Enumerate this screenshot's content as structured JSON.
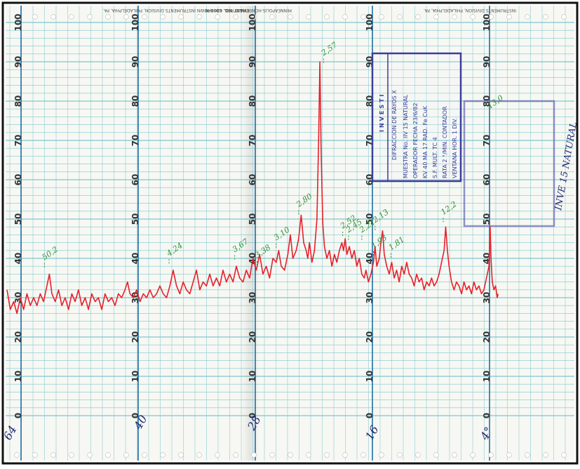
{
  "header": {
    "chart_no": "CHART NO. 6300-N",
    "maker_left": "INSTRUMENTS DIVISION, PHILADELPHIA, PA.",
    "maker_mid": "MINNEAPOLIS-HONEYWELL REG. CO. BROWN INSTRUMENTS DIVISION, PHILADELPHIA, PA."
  },
  "stamp": {
    "title": "INVESTI",
    "lines": [
      "DIFRACCION DE RAYOS X",
      "MUESTRA No. IIV 15 NATURAL",
      "OPERADOR FECHA 23/6/82",
      "KV 40  MA 17  RAD. Fe  CuK",
      "S.F.  MULT.  TC  4",
      "RATA 2  °/MIN.  CONTADOR",
      "VENTANA  HOR. 1 DIV."
    ],
    "side_note": "INVE 15 NATURAL",
    "color": "#3b3f9a"
  },
  "chart_data": {
    "type": "line",
    "title": "",
    "xlabel": "",
    "ylabel": "",
    "xlim": [
      65,
      6
    ],
    "ylim": [
      0,
      100
    ],
    "y_ticks": [
      0,
      10,
      20,
      30,
      40,
      50,
      60,
      70,
      80,
      90,
      100
    ],
    "x_handwritten_labels": [
      "64",
      "40",
      "28",
      "16",
      "4°"
    ],
    "grid": true,
    "line_color": "#e8202a",
    "series": [
      {
        "values": [
          [
            65.0,
            32
          ],
          [
            64.6,
            27
          ],
          [
            64.2,
            29
          ],
          [
            63.8,
            26
          ],
          [
            63.4,
            30
          ],
          [
            63.0,
            27
          ],
          [
            62.6,
            31
          ],
          [
            62.2,
            28
          ],
          [
            61.8,
            30
          ],
          [
            61.4,
            28
          ],
          [
            61.0,
            31
          ],
          [
            60.6,
            29
          ],
          [
            60.2,
            33
          ],
          [
            59.9,
            36
          ],
          [
            59.6,
            31
          ],
          [
            59.2,
            29
          ],
          [
            58.8,
            32
          ],
          [
            58.4,
            28
          ],
          [
            58.0,
            30
          ],
          [
            57.6,
            27
          ],
          [
            57.2,
            31
          ],
          [
            56.8,
            29
          ],
          [
            56.4,
            32
          ],
          [
            56.0,
            28
          ],
          [
            55.6,
            30
          ],
          [
            55.2,
            27
          ],
          [
            54.8,
            31
          ],
          [
            54.4,
            29
          ],
          [
            54.0,
            30
          ],
          [
            53.6,
            27
          ],
          [
            53.2,
            31
          ],
          [
            52.8,
            29
          ],
          [
            52.4,
            30
          ],
          [
            52.0,
            28
          ],
          [
            51.6,
            31
          ],
          [
            51.2,
            30
          ],
          [
            50.8,
            32
          ],
          [
            50.5,
            34
          ],
          [
            50.2,
            31
          ],
          [
            49.8,
            30
          ],
          [
            49.4,
            32
          ],
          [
            49.0,
            29
          ],
          [
            48.6,
            31
          ],
          [
            48.2,
            30
          ],
          [
            47.8,
            32
          ],
          [
            47.4,
            30
          ],
          [
            47.0,
            31
          ],
          [
            46.6,
            33
          ],
          [
            46.2,
            31
          ],
          [
            45.8,
            30
          ],
          [
            45.4,
            33
          ],
          [
            45.0,
            37
          ],
          [
            44.6,
            33
          ],
          [
            44.2,
            31
          ],
          [
            43.8,
            34
          ],
          [
            43.4,
            32
          ],
          [
            43.0,
            31
          ],
          [
            42.6,
            34
          ],
          [
            42.2,
            37
          ],
          [
            41.8,
            32
          ],
          [
            41.4,
            34
          ],
          [
            41.0,
            33
          ],
          [
            40.6,
            36
          ],
          [
            40.2,
            33
          ],
          [
            39.8,
            35
          ],
          [
            39.4,
            33
          ],
          [
            39.0,
            37
          ],
          [
            38.6,
            34
          ],
          [
            38.2,
            36
          ],
          [
            37.8,
            34
          ],
          [
            37.4,
            38
          ],
          [
            37.0,
            35
          ],
          [
            36.6,
            34
          ],
          [
            36.2,
            37
          ],
          [
            35.8,
            35
          ],
          [
            35.4,
            40
          ],
          [
            35.0,
            37
          ],
          [
            34.6,
            41
          ],
          [
            34.2,
            36
          ],
          [
            33.8,
            38
          ],
          [
            33.4,
            35
          ],
          [
            33.0,
            40
          ],
          [
            32.6,
            39
          ],
          [
            32.3,
            42
          ],
          [
            32.0,
            38
          ],
          [
            31.6,
            37
          ],
          [
            31.2,
            41
          ],
          [
            30.9,
            46
          ],
          [
            30.6,
            40
          ],
          [
            30.2,
            42
          ],
          [
            29.9,
            45
          ],
          [
            29.6,
            51
          ],
          [
            29.3,
            44
          ],
          [
            29.0,
            42
          ],
          [
            28.8,
            40
          ],
          [
            28.6,
            44
          ],
          [
            28.3,
            39
          ],
          [
            28.0,
            42
          ],
          [
            27.7,
            50
          ],
          [
            27.5,
            70
          ],
          [
            27.35,
            90
          ],
          [
            27.2,
            68
          ],
          [
            27.0,
            49
          ],
          [
            26.8,
            43
          ],
          [
            26.5,
            40
          ],
          [
            26.2,
            42
          ],
          [
            25.9,
            38
          ],
          [
            25.6,
            41
          ],
          [
            25.3,
            39
          ],
          [
            25.0,
            42
          ],
          [
            24.7,
            44
          ],
          [
            24.5,
            42
          ],
          [
            24.3,
            45
          ],
          [
            24.1,
            41
          ],
          [
            23.8,
            43
          ],
          [
            23.5,
            40
          ],
          [
            23.2,
            42
          ],
          [
            22.9,
            38
          ],
          [
            22.6,
            40
          ],
          [
            22.3,
            36
          ],
          [
            22.0,
            35
          ],
          [
            21.8,
            37
          ],
          [
            21.5,
            34
          ],
          [
            21.2,
            36
          ],
          [
            20.9,
            39
          ],
          [
            20.7,
            43
          ],
          [
            20.5,
            38
          ],
          [
            20.2,
            40
          ],
          [
            20.0,
            44
          ],
          [
            19.8,
            47
          ],
          [
            19.6,
            41
          ],
          [
            19.3,
            38
          ],
          [
            19.0,
            36
          ],
          [
            18.7,
            39
          ],
          [
            18.4,
            35
          ],
          [
            18.1,
            37
          ],
          [
            17.8,
            34
          ],
          [
            17.5,
            38
          ],
          [
            17.2,
            36
          ],
          [
            16.9,
            39
          ],
          [
            16.6,
            36
          ],
          [
            16.3,
            35
          ],
          [
            16.0,
            33
          ],
          [
            15.7,
            36
          ],
          [
            15.4,
            34
          ],
          [
            15.1,
            35
          ],
          [
            14.8,
            32
          ],
          [
            14.5,
            34
          ],
          [
            14.2,
            33
          ],
          [
            13.9,
            35
          ],
          [
            13.6,
            33
          ],
          [
            13.3,
            34
          ],
          [
            13.0,
            36
          ],
          [
            12.7,
            39
          ],
          [
            12.4,
            42
          ],
          [
            12.2,
            48
          ],
          [
            12.0,
            42
          ],
          [
            11.8,
            38
          ],
          [
            11.5,
            34
          ],
          [
            11.2,
            32
          ],
          [
            10.9,
            34
          ],
          [
            10.6,
            33
          ],
          [
            10.3,
            31
          ],
          [
            10.0,
            34
          ],
          [
            9.7,
            32
          ],
          [
            9.4,
            33
          ],
          [
            9.1,
            31
          ],
          [
            8.8,
            34
          ],
          [
            8.5,
            32
          ],
          [
            8.2,
            33
          ],
          [
            7.9,
            31
          ],
          [
            7.6,
            32
          ],
          [
            7.3,
            35
          ],
          [
            7.0,
            38
          ],
          [
            6.85,
            48
          ],
          [
            6.75,
            40
          ],
          [
            6.6,
            34
          ],
          [
            6.4,
            32
          ],
          [
            6.2,
            33
          ],
          [
            6.0,
            30
          ],
          [
            5.9,
            31
          ]
        ]
      }
    ],
    "annotations": [
      {
        "x": 60.5,
        "y": 39.5,
        "text": "50,2"
      },
      {
        "x": 45.5,
        "y": 40.5,
        "text": "4,24"
      },
      {
        "x": 37.6,
        "y": 41.5,
        "text": "3,67"
      },
      {
        "x": 34.9,
        "y": 40.0,
        "text": "3,38"
      },
      {
        "x": 32.6,
        "y": 44.5,
        "text": "3,10"
      },
      {
        "x": 29.9,
        "y": 53.0,
        "text": "2,80"
      },
      {
        "x": 26.9,
        "y": 91.5,
        "text": "2,57"
      },
      {
        "x": 24.6,
        "y": 47.5,
        "text": "2,52"
      },
      {
        "x": 23.9,
        "y": 46.5,
        "text": "2,45"
      },
      {
        "x": 22.3,
        "y": 46.5,
        "text": "2,21"
      },
      {
        "x": 20.7,
        "y": 49.0,
        "text": "2,13"
      },
      {
        "x": 20.9,
        "y": 42.5,
        "text": "1,93"
      },
      {
        "x": 18.8,
        "y": 42.0,
        "text": "1,81"
      },
      {
        "x": 12.5,
        "y": 51.0,
        "text": "12,2"
      },
      {
        "x": 6.9,
        "y": 78.0,
        "text": "13,0"
      }
    ]
  }
}
